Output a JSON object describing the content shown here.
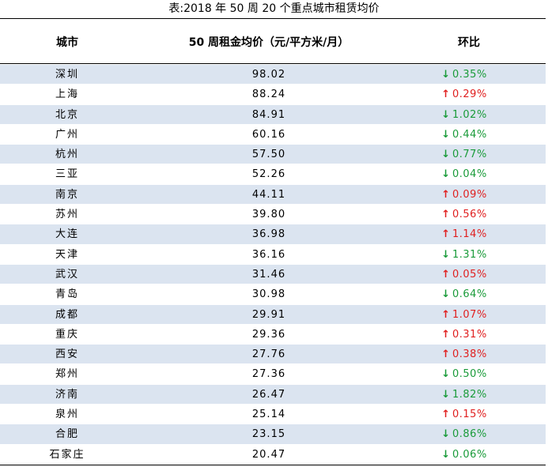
{
  "title": "表:2018 年 50 周 20 个重点城市租赁均价",
  "headers": {
    "city": "城市",
    "price": "50 周租金均价（元/平方米/月）",
    "mom": "环比"
  },
  "colors": {
    "up": "#e02020",
    "down": "#1a9b3a",
    "stripe": "#dbe4f0"
  },
  "rows": [
    {
      "city": "深圳",
      "price": "98.02",
      "direction": "down",
      "arrow": "↓",
      "mom": "0.35%"
    },
    {
      "city": "上海",
      "price": "88.24",
      "direction": "up",
      "arrow": "↑",
      "mom": "0.29%"
    },
    {
      "city": "北京",
      "price": "84.91",
      "direction": "down",
      "arrow": "↓",
      "mom": "1.02%"
    },
    {
      "city": "广州",
      "price": "60.16",
      "direction": "down",
      "arrow": "↓",
      "mom": "0.44%"
    },
    {
      "city": "杭州",
      "price": "57.50",
      "direction": "down",
      "arrow": "↓",
      "mom": "0.77%"
    },
    {
      "city": "三亚",
      "price": "52.26",
      "direction": "down",
      "arrow": "↓",
      "mom": "0.04%"
    },
    {
      "city": "南京",
      "price": "44.11",
      "direction": "up",
      "arrow": "↑",
      "mom": "0.09%"
    },
    {
      "city": "苏州",
      "price": "39.80",
      "direction": "up",
      "arrow": "↑",
      "mom": "0.56%"
    },
    {
      "city": "大连",
      "price": "36.98",
      "direction": "up",
      "arrow": "↑",
      "mom": "1.14%"
    },
    {
      "city": "天津",
      "price": "36.16",
      "direction": "down",
      "arrow": "↓",
      "mom": "1.31%"
    },
    {
      "city": "武汉",
      "price": "31.46",
      "direction": "up",
      "arrow": "↑",
      "mom": "0.05%"
    },
    {
      "city": "青岛",
      "price": "30.98",
      "direction": "down",
      "arrow": "↓",
      "mom": "0.64%"
    },
    {
      "city": "成都",
      "price": "29.91",
      "direction": "up",
      "arrow": "↑",
      "mom": "1.07%"
    },
    {
      "city": "重庆",
      "price": "29.36",
      "direction": "up",
      "arrow": "↑",
      "mom": "0.31%"
    },
    {
      "city": "西安",
      "price": "27.76",
      "direction": "up",
      "arrow": "↑",
      "mom": "0.38%"
    },
    {
      "city": "郑州",
      "price": "27.36",
      "direction": "down",
      "arrow": "↓",
      "mom": "0.50%"
    },
    {
      "city": "济南",
      "price": "26.47",
      "direction": "down",
      "arrow": "↓",
      "mom": "1.82%"
    },
    {
      "city": "泉州",
      "price": "25.14",
      "direction": "up",
      "arrow": "↑",
      "mom": "0.15%"
    },
    {
      "city": "合肥",
      "price": "23.15",
      "direction": "down",
      "arrow": "↓",
      "mom": "0.86%"
    },
    {
      "city": "石家庄",
      "price": "20.47",
      "direction": "down",
      "arrow": "↓",
      "mom": "0.06%"
    }
  ]
}
